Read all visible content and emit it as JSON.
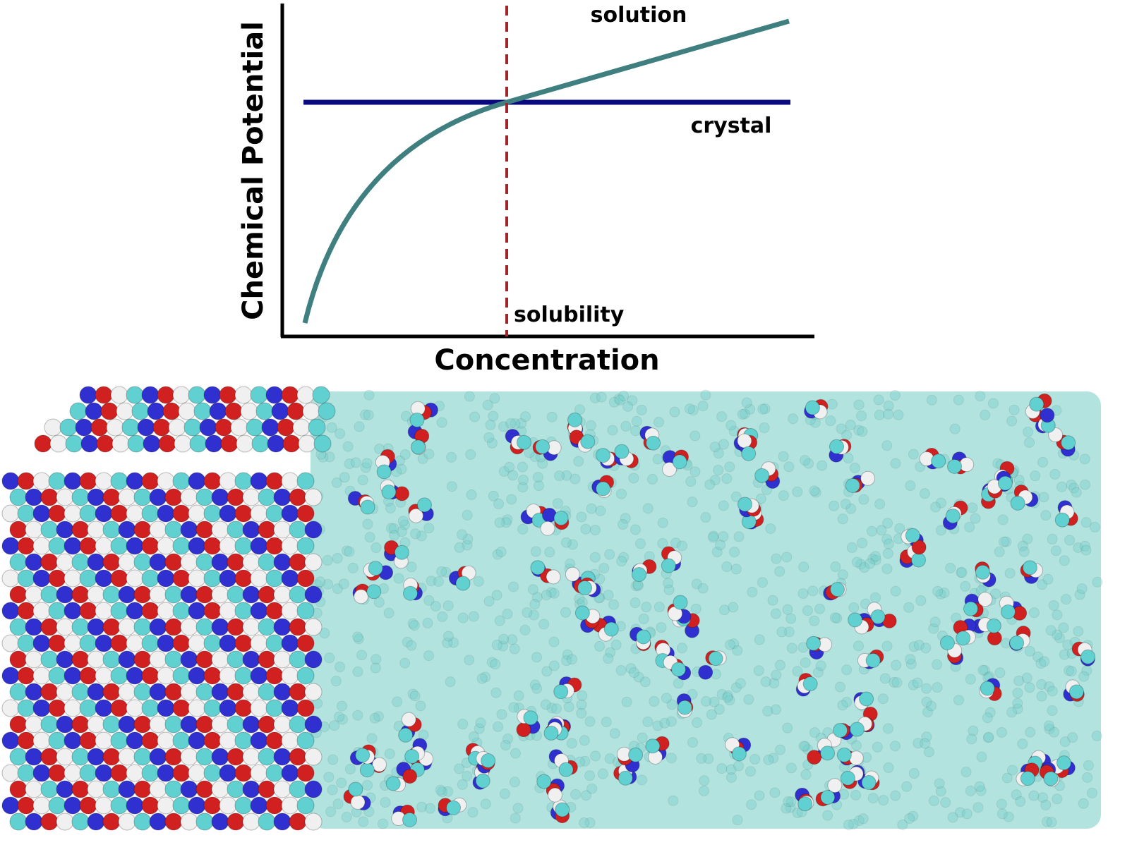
{
  "plot": {
    "y_label": "Chemical Potential",
    "x_label": "Concentration",
    "curve_labels": {
      "solution": "solution",
      "crystal": "crystal",
      "solubility": "solubility"
    }
  }
}
